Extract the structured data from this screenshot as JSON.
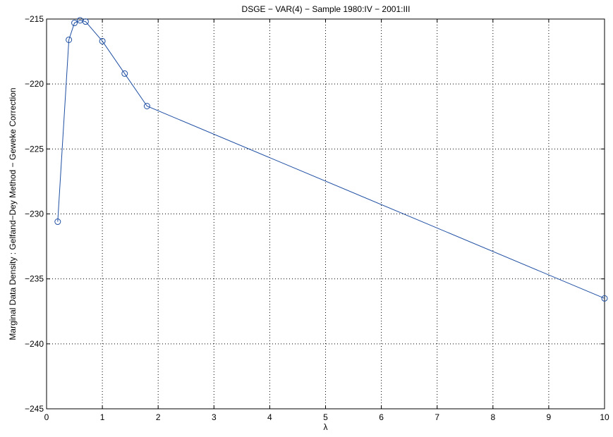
{
  "chart_data": {
    "type": "line",
    "title": "DSGE − VAR(4) − Sample 1980:IV − 2001:III",
    "xlabel": "λ",
    "ylabel": "Marginal Data Density : Gelfand−Dey Method − Geweke Correction",
    "xlim": [
      0,
      10
    ],
    "ylim": [
      -245,
      -215
    ],
    "xticks": [
      0,
      1,
      2,
      3,
      4,
      5,
      6,
      7,
      8,
      9,
      10
    ],
    "yticks": [
      -215,
      -220,
      -225,
      -230,
      -235,
      -240,
      -245
    ],
    "ytick_labels": [
      "−215",
      "−220",
      "−225",
      "−230",
      "−235",
      "−240",
      "−245"
    ],
    "grid": true,
    "series": [
      {
        "color": "#1f4fa3",
        "marker": "circle",
        "x": [
          0.2,
          0.4,
          0.5,
          0.6,
          0.7,
          1.0,
          1.4,
          1.8,
          10.0
        ],
        "y": [
          -230.6,
          -216.6,
          -215.3,
          -215.1,
          -215.2,
          -216.7,
          -219.2,
          -221.7,
          -236.5
        ]
      }
    ]
  }
}
